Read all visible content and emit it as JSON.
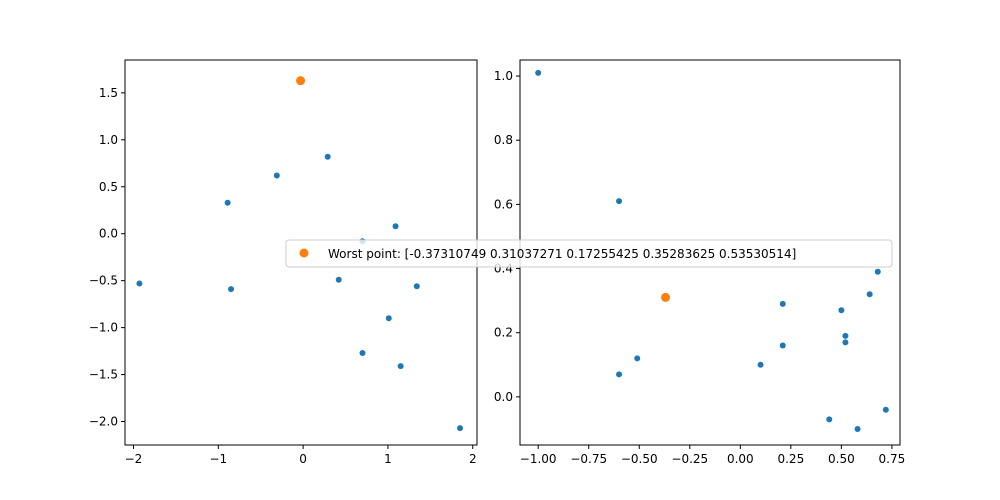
{
  "colors": {
    "points": "#1f77b4",
    "worst": "#ff7f0e",
    "axes": "#000000",
    "background": "#ffffff"
  },
  "legend": {
    "label": "Worst point: [-0.37310749  0.31037271  0.17255425  0.35283625  0.53530514]",
    "placement": "center"
  },
  "chart_data": [
    {
      "type": "scatter",
      "xlim": [
        -2.1,
        2.05
      ],
      "ylim": [
        -2.25,
        1.85
      ],
      "xticks": [
        -2,
        -1,
        0,
        1,
        2
      ],
      "xtick_labels": [
        "−2",
        "−1",
        "0",
        "1",
        "2"
      ],
      "yticks": [
        -2.0,
        -1.5,
        -1.0,
        -0.5,
        0.0,
        0.5,
        1.0,
        1.5
      ],
      "ytick_labels": [
        "−2.0",
        "−1.5",
        "−1.0",
        "−0.5",
        "0.0",
        "0.5",
        "1.0",
        "1.5"
      ],
      "points": [
        {
          "x": -1.93,
          "y": -0.53
        },
        {
          "x": -0.89,
          "y": 0.33
        },
        {
          "x": -0.85,
          "y": -0.59
        },
        {
          "x": -0.31,
          "y": 0.62
        },
        {
          "x": 0.29,
          "y": 0.82
        },
        {
          "x": 0.42,
          "y": -0.49
        },
        {
          "x": 0.7,
          "y": -0.08
        },
        {
          "x": 0.7,
          "y": -1.27
        },
        {
          "x": 1.01,
          "y": -0.9
        },
        {
          "x": 1.09,
          "y": 0.08
        },
        {
          "x": 1.15,
          "y": -1.41
        },
        {
          "x": 1.34,
          "y": -0.56
        },
        {
          "x": 1.85,
          "y": -2.07
        }
      ],
      "worst": {
        "x": -0.03,
        "y": 1.63
      }
    },
    {
      "type": "scatter",
      "xlim": [
        -1.09,
        0.79
      ],
      "ylim": [
        -0.15,
        1.05
      ],
      "xticks": [
        -1.0,
        -0.75,
        -0.5,
        -0.25,
        0.0,
        0.25,
        0.5,
        0.75
      ],
      "xtick_labels": [
        "−1.00",
        "−0.75",
        "−0.50",
        "−0.25",
        "0.00",
        "0.25",
        "0.50",
        "0.75"
      ],
      "yticks": [
        0.0,
        0.2,
        0.4,
        0.6,
        0.8,
        1.0
      ],
      "ytick_labels": [
        "0.0",
        "0.2",
        "0.4",
        "0.6",
        "0.8",
        "1.0"
      ],
      "points": [
        {
          "x": -1.0,
          "y": 1.01
        },
        {
          "x": -0.6,
          "y": 0.61
        },
        {
          "x": -0.6,
          "y": 0.07
        },
        {
          "x": -0.51,
          "y": 0.12
        },
        {
          "x": 0.1,
          "y": 0.1
        },
        {
          "x": 0.21,
          "y": 0.29
        },
        {
          "x": 0.21,
          "y": 0.16
        },
        {
          "x": 0.44,
          "y": -0.07
        },
        {
          "x": 0.5,
          "y": 0.27
        },
        {
          "x": 0.52,
          "y": 0.19
        },
        {
          "x": 0.52,
          "y": 0.17
        },
        {
          "x": 0.58,
          "y": -0.1
        },
        {
          "x": 0.64,
          "y": 0.32
        },
        {
          "x": 0.68,
          "y": 0.39
        },
        {
          "x": 0.72,
          "y": -0.04
        }
      ],
      "worst": {
        "x": -0.37,
        "y": 0.31
      }
    }
  ]
}
